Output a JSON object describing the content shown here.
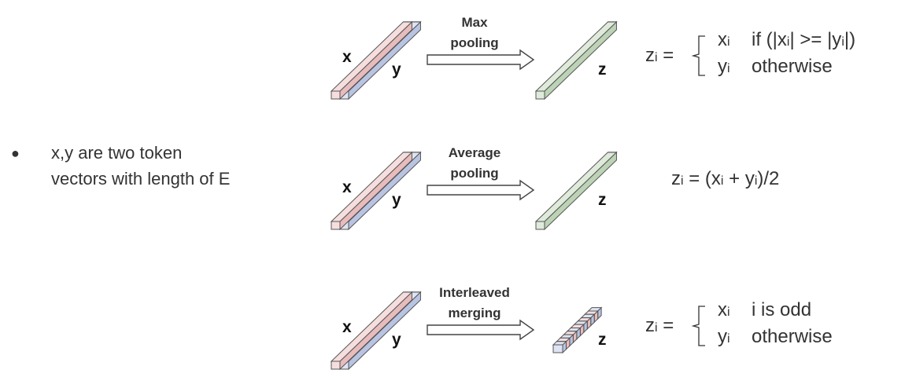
{
  "bullet": {
    "marker": "●",
    "line1": "x,y are two token",
    "line2": "vectors with length of E"
  },
  "colors": {
    "x_fill": "#f6dede",
    "x_edge": "#e8bcbc",
    "y_fill": "#dfe4f3",
    "y_edge": "#b9c4e2",
    "z_fill": "#dfeadb",
    "z_edge": "#bcd3b6",
    "outline": "#555555"
  },
  "rows": [
    {
      "x_label": "x",
      "y_label": "y",
      "z_label": "z",
      "op_line1": "Max",
      "op_line2": "pooling",
      "formula": {
        "type": "cases",
        "lhs": "z",
        "lhs_sub": "i",
        "eq": " =",
        "case1_var": "x",
        "case1_sub": "i",
        "case1_cond_parts": [
          "if (|x",
          "i",
          "| >= |y",
          "i",
          "|)"
        ],
        "case2_var": "y",
        "case2_sub": "i",
        "case2_cond": "otherwise"
      }
    },
    {
      "x_label": "x",
      "y_label": "y",
      "z_label": "z",
      "op_line1": "Average",
      "op_line2": "pooling",
      "formula": {
        "type": "inline",
        "parts": [
          "z",
          "i",
          " = (x",
          "i",
          " + y",
          "i",
          ")/2"
        ]
      }
    },
    {
      "x_label": "x",
      "y_label": "y",
      "z_label": "z",
      "op_line1": "Interleaved",
      "op_line2": "merging",
      "formula": {
        "type": "cases",
        "lhs": "z",
        "lhs_sub": "i",
        "eq": " =",
        "case1_var": "x",
        "case1_sub": "i",
        "case1_cond_parts": [
          "i is odd"
        ],
        "case2_var": "y",
        "case2_sub": "i",
        "case2_cond": "otherwise"
      }
    }
  ]
}
